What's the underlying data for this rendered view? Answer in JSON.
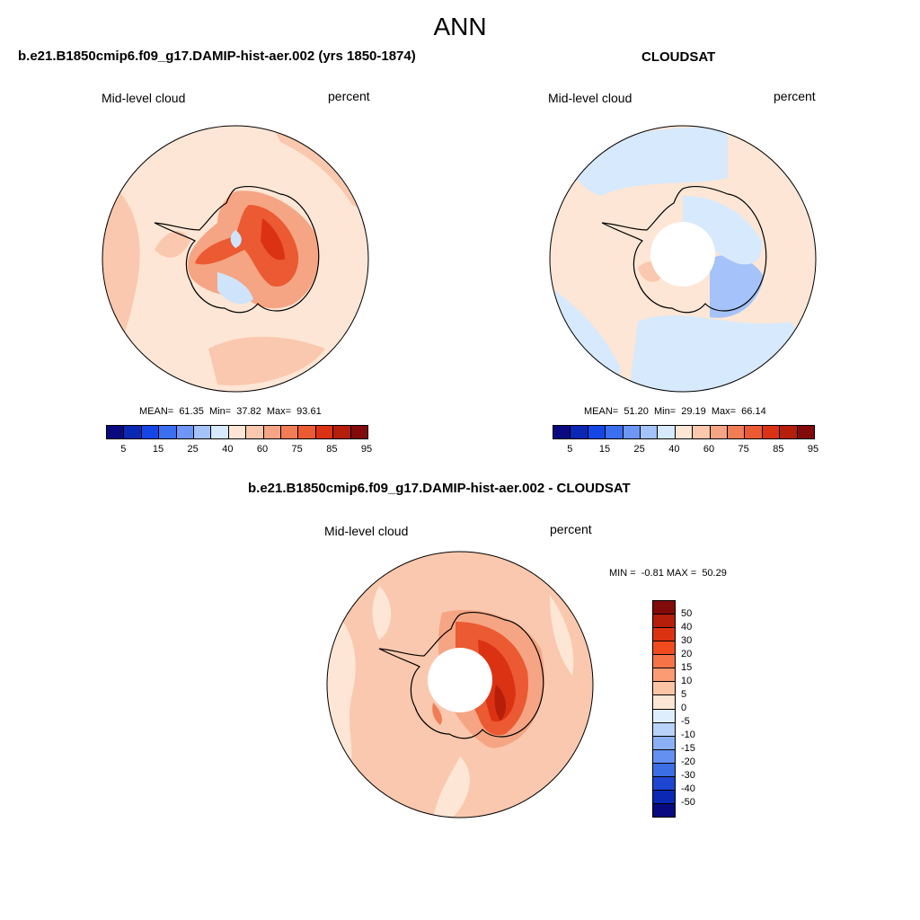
{
  "title": "ANN",
  "panels": [
    {
      "title": "b.e21.B1850cmip6.f09_g17.DAMIP-hist-aer.002 (yrs 1850-1874)",
      "field_label": "Mid-level cloud",
      "units": "percent",
      "stats": "MEAN=  61.35  Min=  37.82  Max=  93.61"
    },
    {
      "title": "CLOUDSAT",
      "field_label": "Mid-level cloud",
      "units": "percent",
      "stats": "MEAN=  51.20  Min=  29.19  Max=  66.14"
    },
    {
      "title": "b.e21.B1850cmip6.f09_g17.DAMIP-hist-aer.002 - CLOUDSAT",
      "field_label": "Mid-level cloud",
      "units": "percent",
      "stats": "MIN =  -0.81 MAX =  50.29"
    }
  ],
  "colorbar_abs": {
    "ticks": [
      "5",
      "15",
      "25",
      "40",
      "60",
      "75",
      "85",
      "95"
    ],
    "colors": [
      "#0a0a80",
      "#0a28b4",
      "#1446e6",
      "#3c6ef0",
      "#6e96f5",
      "#a5c3fa",
      "#d7e9fd",
      "#fde6d5",
      "#fac8ae",
      "#f5a584",
      "#f07d55",
      "#eb5a32",
      "#dc3214",
      "#b41e0a",
      "#820a0a"
    ]
  },
  "colorbar_diff": {
    "ticks": [
      "50",
      "40",
      "30",
      "20",
      "15",
      "10",
      "5",
      "0",
      "-5",
      "-10",
      "-15",
      "-20",
      "-30",
      "-40",
      "-50"
    ],
    "colors": [
      "#820a0a",
      "#b41e0a",
      "#dc3214",
      "#f04b1e",
      "#f57346",
      "#fa9b73",
      "#fcc3a5",
      "#fde6d5",
      "#dfeefd",
      "#b9d2fa",
      "#8cb0f5",
      "#6490f0",
      "#3c6ee6",
      "#1e46d2",
      "#0a28b4",
      "#0a0a80"
    ]
  },
  "colors": {
    "ocean_abs_model": "#fde6d5",
    "ocean_abs_obs": "#fde6d5",
    "coast": "#000000"
  }
}
